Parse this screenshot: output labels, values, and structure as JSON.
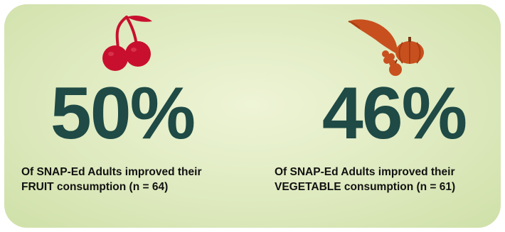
{
  "stats": [
    {
      "percent": "50%",
      "line1": "Of SNAP-Ed Adults improved their",
      "line2": "FRUIT consumption (n = 64)",
      "icon": "cherries-icon",
      "icon_color": "#c8102e"
    },
    {
      "percent": "46%",
      "line1": "Of SNAP-Ed Adults improved their",
      "line2": "VEGETABLE consumption (n = 61)",
      "icon": "cornucopia-icon",
      "icon_color": "#c8501e"
    }
  ],
  "colors": {
    "percent_text": "#1f4a45",
    "caption_text": "#111111",
    "card_background": "#dde9bd"
  }
}
